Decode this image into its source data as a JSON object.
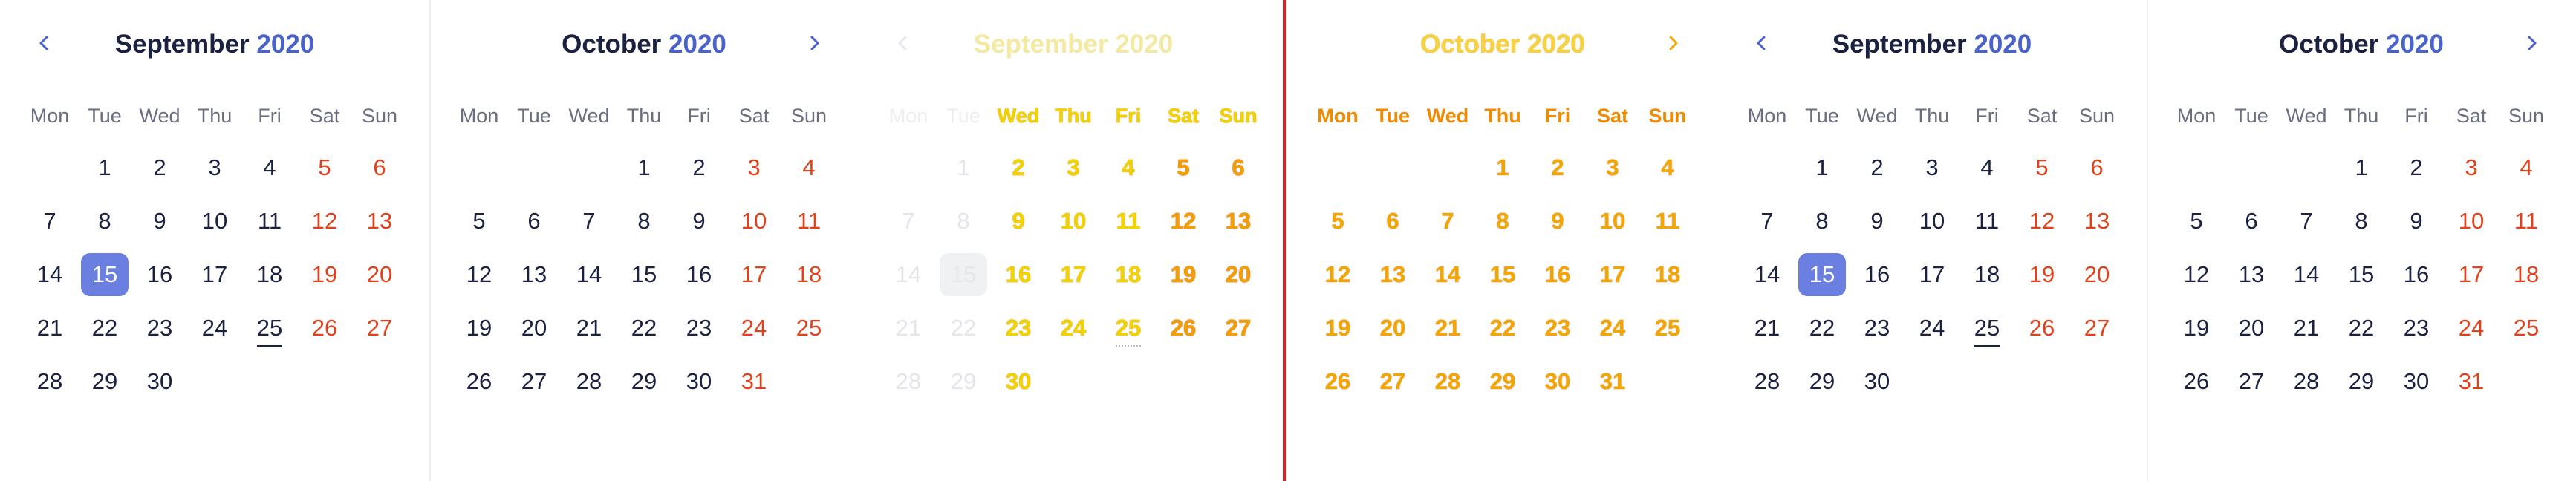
{
  "weekdays": [
    "Mon",
    "Tue",
    "Wed",
    "Thu",
    "Fri",
    "Sat",
    "Sun"
  ],
  "colors": {
    "accent": "#4a62cc",
    "weekend": "#e0421c",
    "selected_bg": "#6b7fe0",
    "divider_red": "#e02020"
  },
  "icons": {
    "prev": "chevron-left-icon",
    "next": "chevron-right-icon"
  },
  "panels": [
    {
      "month": "September",
      "year": "2020"
    },
    {
      "month": "October",
      "year": "2020"
    },
    {
      "month": "September",
      "year": "2020"
    },
    {
      "month": "October",
      "year": "2020"
    },
    {
      "month": "September",
      "year": "2020"
    },
    {
      "month": "October",
      "year": "2020"
    }
  ],
  "september": {
    "weeks": [
      [
        "",
        "1",
        "2",
        "3",
        "4",
        "5",
        "6"
      ],
      [
        "7",
        "8",
        "9",
        "10",
        "11",
        "12",
        "13"
      ],
      [
        "14",
        "15",
        "16",
        "17",
        "18",
        "19",
        "20"
      ],
      [
        "21",
        "22",
        "23",
        "24",
        "25",
        "26",
        "27"
      ],
      [
        "28",
        "29",
        "30",
        "",
        "",
        "",
        ""
      ]
    ],
    "selected": "15",
    "today": "25"
  },
  "october": {
    "weeks": [
      [
        "",
        "",
        "",
        "1",
        "2",
        "3",
        "4"
      ],
      [
        "5",
        "6",
        "7",
        "8",
        "9",
        "10",
        "11"
      ],
      [
        "12",
        "13",
        "14",
        "15",
        "16",
        "17",
        "18"
      ],
      [
        "19",
        "20",
        "21",
        "22",
        "23",
        "24",
        "25"
      ],
      [
        "26",
        "27",
        "28",
        "29",
        "30",
        "31",
        ""
      ]
    ]
  }
}
